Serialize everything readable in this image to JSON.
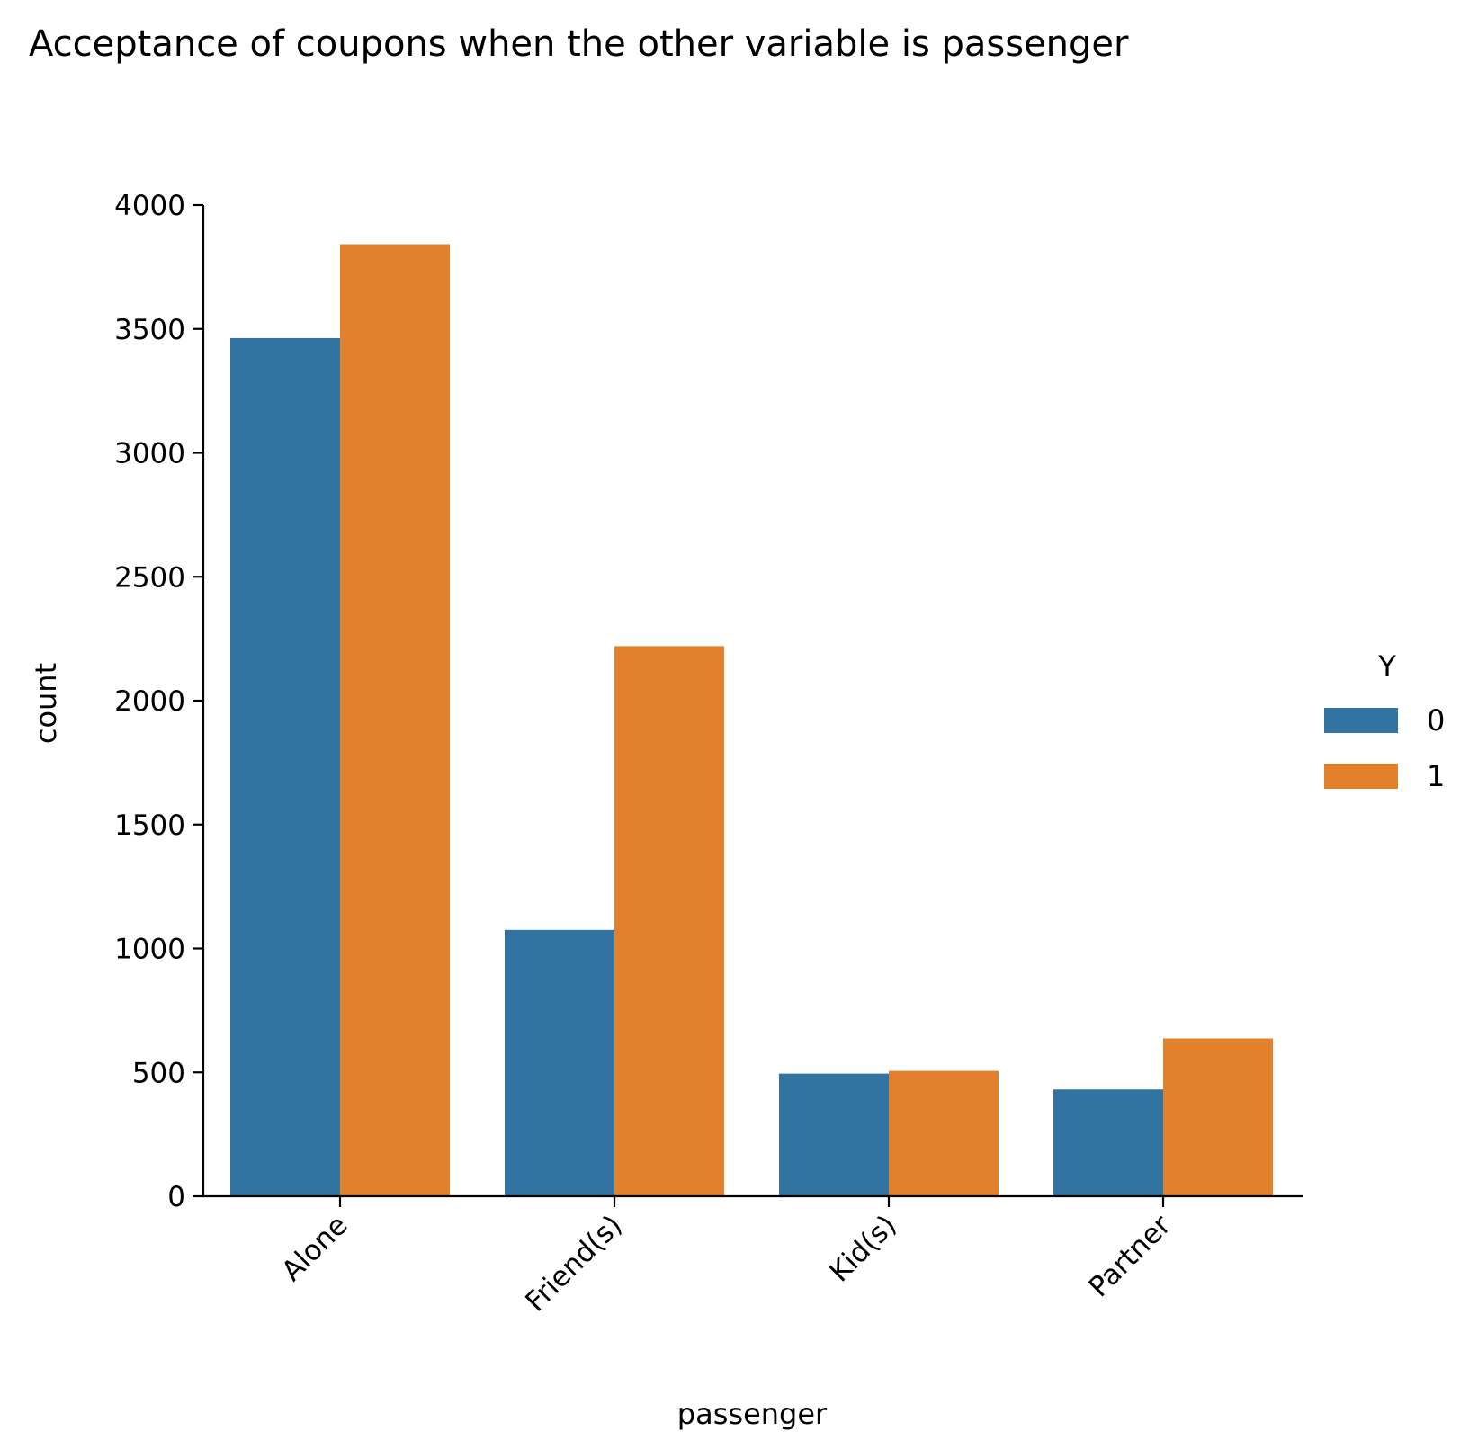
{
  "chart_data": {
    "type": "bar",
    "title": "Acceptance of coupons when the other variable is passenger",
    "xlabel": "passenger",
    "ylabel": "count",
    "categories": [
      "Alone",
      "Friend(s)",
      "Kid(s)",
      "Partner"
    ],
    "series": [
      {
        "name": "0",
        "color": "#3274a1",
        "values": [
          3463,
          1075,
          495,
          431
        ]
      },
      {
        "name": "1",
        "color": "#e1812c",
        "values": [
          3842,
          2220,
          506,
          637
        ]
      }
    ],
    "ylim": [
      0,
      4000
    ],
    "yticks": [
      0,
      500,
      1000,
      1500,
      2000,
      2500,
      3000,
      3500,
      4000
    ],
    "legend": {
      "title": "Y",
      "placement": "center-right"
    },
    "grid": false
  }
}
